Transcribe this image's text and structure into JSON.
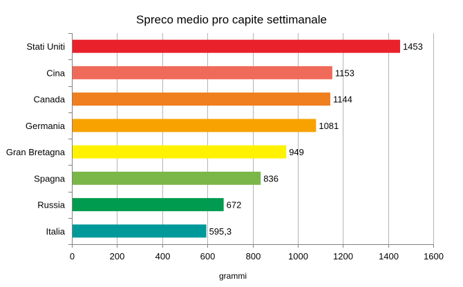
{
  "chart_data": {
    "type": "bar",
    "orientation": "horizontal",
    "title": "Spreco medio pro capite settimanale",
    "xlabel": "grammi",
    "ylabel": "",
    "xlim": [
      0,
      1600
    ],
    "x_ticks": [
      "0",
      "200",
      "400",
      "600",
      "800",
      "1000",
      "1200",
      "1400",
      "1600"
    ],
    "grid": "vertical",
    "legend": "none",
    "categories": [
      "Stati Uniti",
      "Cina",
      "Canada",
      "Germania",
      "Gran Bretagna",
      "Spagna",
      "Russia",
      "Italia"
    ],
    "values": [
      1453,
      1153,
      1144,
      1081,
      949,
      836,
      672,
      595.3
    ],
    "value_labels": [
      "1453",
      "1153",
      "1144",
      "1081",
      "949",
      "836",
      "672",
      "595,3"
    ],
    "colors": [
      "#e8212a",
      "#f06a5a",
      "#ef7f1f",
      "#f7a200",
      "#fff200",
      "#7ab648",
      "#009b4f",
      "#00999a"
    ]
  }
}
